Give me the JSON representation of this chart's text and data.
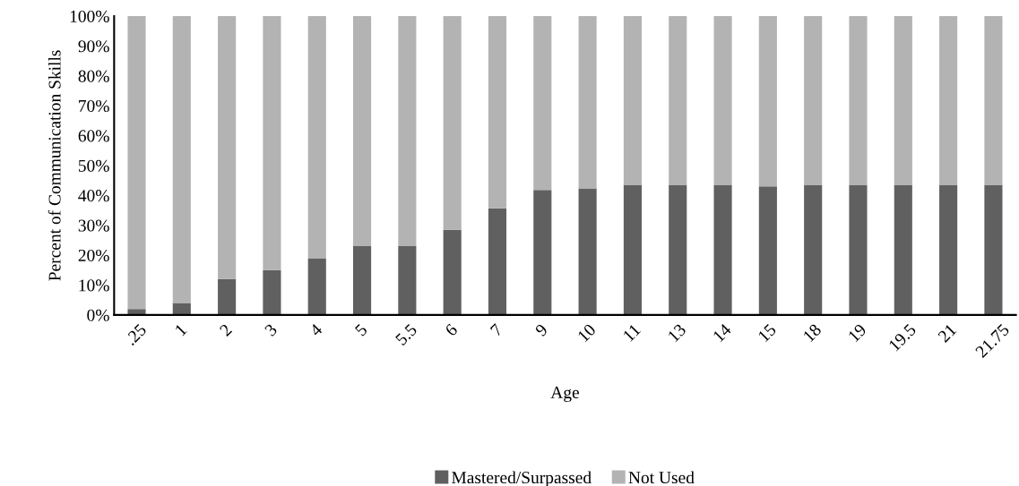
{
  "chart_data": {
    "type": "bar",
    "stacked": true,
    "xlabel": "Age",
    "ylabel": "Percent of Communication Skills",
    "categories": [
      ".25",
      "1",
      "2",
      "3",
      "4",
      "5",
      "5.5",
      "6",
      "7",
      "9",
      "10",
      "11",
      "13",
      "14",
      "15",
      "18",
      "19",
      "19.5",
      "21",
      "21.75"
    ],
    "series": [
      {
        "name": "Mastered/Surpassed",
        "color": "#606060",
        "values": [
          2,
          4,
          12,
          15,
          19,
          23,
          23,
          28.5,
          35.7,
          41.8,
          42.3,
          43.5,
          43.5,
          43.5,
          43,
          43.5,
          43.5,
          43.5,
          43.5,
          43.5
        ]
      },
      {
        "name": "Not Used",
        "color": "#b3b3b3",
        "values": [
          98,
          96,
          88,
          85,
          81,
          77,
          77,
          71.5,
          64.3,
          58.2,
          57.7,
          56.5,
          56.5,
          56.5,
          57,
          56.5,
          56.5,
          56.5,
          56.5,
          56.5
        ]
      }
    ],
    "ylim": [
      0,
      100
    ],
    "yticks": [
      {
        "value": 0,
        "label": "0%"
      },
      {
        "value": 10,
        "label": "10%"
      },
      {
        "value": 20,
        "label": "20%"
      },
      {
        "value": 30,
        "label": "30%"
      },
      {
        "value": 40,
        "label": "40%"
      },
      {
        "value": 50,
        "label": "50%"
      },
      {
        "value": 60,
        "label": "60%"
      },
      {
        "value": 70,
        "label": "70%"
      },
      {
        "value": 80,
        "label": "80%"
      },
      {
        "value": 90,
        "label": "90%"
      },
      {
        "value": 100,
        "label": "100%"
      }
    ],
    "grid": false,
    "legend": "bottom"
  }
}
